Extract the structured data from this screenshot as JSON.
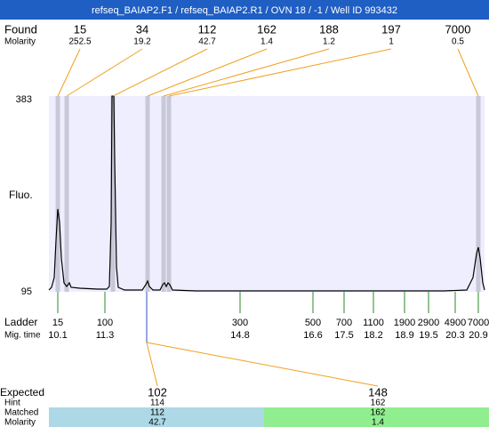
{
  "title": "refseq_BAIAP2.F1 / refseq_BAIAP2.R1 / OVN 18 / -1 / Well ID 993432",
  "found": {
    "label": "Found",
    "molarity_label": "Molarity",
    "peaks": [
      {
        "size": 15,
        "molarity": 252.5
      },
      {
        "size": 34,
        "molarity": 19.2
      },
      {
        "size": 112,
        "molarity": 42.7
      },
      {
        "size": 162,
        "molarity": 1.4
      },
      {
        "size": 188,
        "molarity": 1.2
      },
      {
        "size": 197,
        "molarity": 1
      },
      {
        "size": 7000,
        "molarity": 0.5
      }
    ]
  },
  "plot": {
    "y_label": "Fluo.",
    "ymax": 383,
    "ymin": 95
  },
  "ladder": {
    "label": "Ladder",
    "time_label": "Mig. time",
    "peaks": [
      {
        "size": 15,
        "time": 10.1
      },
      {
        "size": 100,
        "time": 11.3
      },
      {
        "size": 300,
        "time": 14.8
      },
      {
        "size": 500,
        "time": 16.6
      },
      {
        "size": 700,
        "time": 17.5
      },
      {
        "size": 1100,
        "time": 18.2
      },
      {
        "size": 1900,
        "time": 18.9
      },
      {
        "size": 2900,
        "time": 19.5
      },
      {
        "size": 4900,
        "time": 20.3
      },
      {
        "size": 7000,
        "time": 20.9
      }
    ]
  },
  "expected": {
    "labels": [
      "Expected",
      "Hint",
      "Matched",
      "Molarity"
    ],
    "columns": [
      {
        "expected": 102,
        "hint": 114,
        "matched": 112,
        "molarity": 42.7
      },
      {
        "expected": 148,
        "hint": 162,
        "matched": 162,
        "molarity": 1.4
      }
    ]
  }
}
